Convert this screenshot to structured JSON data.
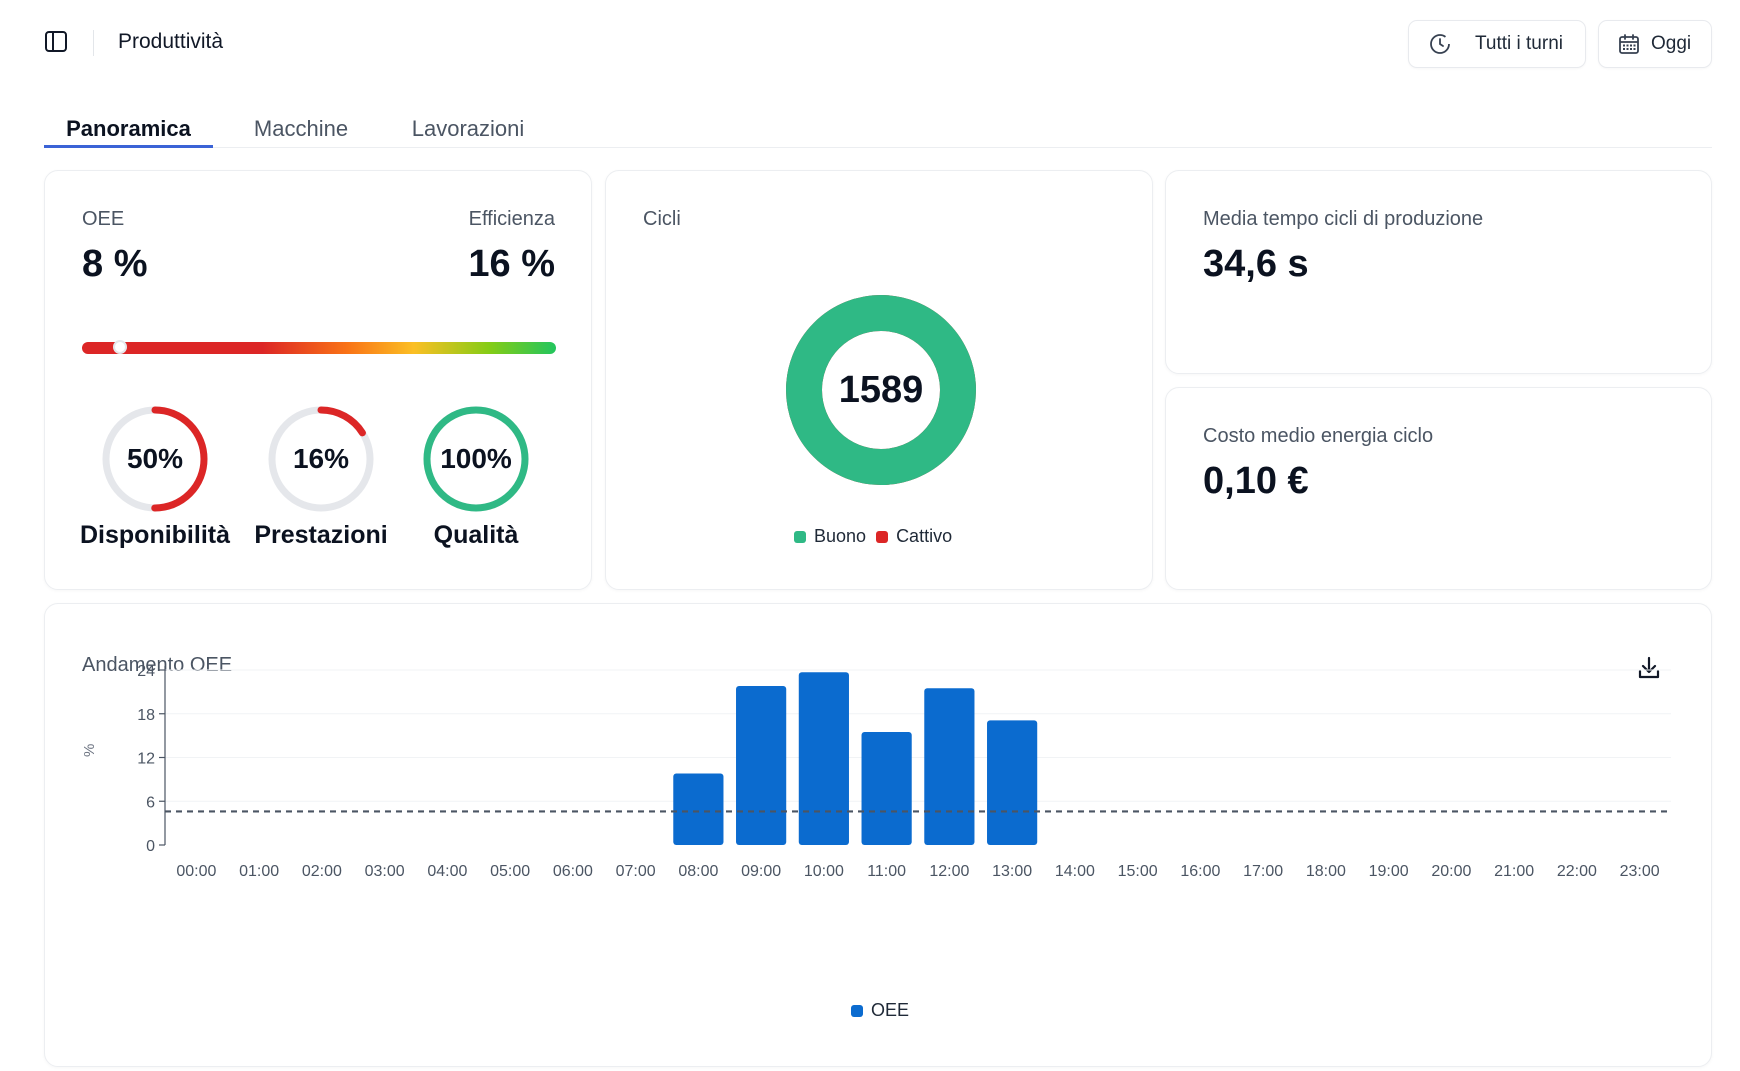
{
  "header": {
    "title": "Produttività",
    "sidebar_icon": "sidebar-toggle-icon",
    "shifts_label": "Tutti i turni",
    "shifts_icon": "clock-icon",
    "date_label": "Oggi",
    "date_icon": "calendar-icon"
  },
  "tabs": [
    {
      "label": "Panoramica",
      "active": true
    },
    {
      "label": "Macchine",
      "active": false
    },
    {
      "label": "Lavorazioni",
      "active": false
    }
  ],
  "oee_card": {
    "oee_label": "OEE",
    "oee_value": "8 %",
    "efficiency_label": "Efficienza",
    "efficiency_value": "16 %",
    "oee_fraction": 0.08,
    "gauges": [
      {
        "value_text": "50%",
        "fraction": 0.5,
        "label": "Disponibilità",
        "color": "#dc2626"
      },
      {
        "value_text": "16%",
        "fraction": 0.16,
        "label": "Prestazioni",
        "color": "#dc2626"
      },
      {
        "value_text": "100%",
        "fraction": 1.0,
        "label": "Qualità",
        "color": "#2fb985"
      }
    ],
    "track_color": "#e5e7eb"
  },
  "cycles_card": {
    "label": "Cicli",
    "total": "1589",
    "good": 1589,
    "bad": 0,
    "legend_good": "Buono",
    "legend_bad": "Cattivo",
    "good_color": "#2fb985",
    "bad_color": "#dc2626"
  },
  "avg_time_card": {
    "label": "Media tempo cicli di produzione",
    "value": "34,6 s"
  },
  "energy_card": {
    "label": "Costo medio energia ciclo",
    "value": "0,10 €"
  },
  "trend_card": {
    "title": "Andamento OEE",
    "download_icon": "download-icon"
  },
  "chart_data": {
    "type": "bar",
    "title": "Andamento OEE",
    "xlabel": "",
    "ylabel": "%",
    "ylim": [
      0,
      24
    ],
    "yticks": [
      0,
      6,
      12,
      18,
      24
    ],
    "categories": [
      "00:00",
      "01:00",
      "02:00",
      "03:00",
      "04:00",
      "05:00",
      "06:00",
      "07:00",
      "08:00",
      "09:00",
      "10:00",
      "11:00",
      "12:00",
      "13:00",
      "14:00",
      "15:00",
      "16:00",
      "17:00",
      "18:00",
      "19:00",
      "20:00",
      "21:00",
      "22:00",
      "23:00"
    ],
    "series": [
      {
        "name": "OEE",
        "color": "#0b6bcf",
        "values": [
          null,
          null,
          null,
          null,
          null,
          null,
          null,
          null,
          9.8,
          21.8,
          23.7,
          15.5,
          21.5,
          17.1,
          null,
          null,
          null,
          null,
          null,
          null,
          null,
          null,
          null,
          null
        ]
      }
    ],
    "reference_line": {
      "value": 4.6,
      "style": "dashed",
      "color": "#4b5563"
    },
    "grid": true,
    "legend": "bottom"
  }
}
